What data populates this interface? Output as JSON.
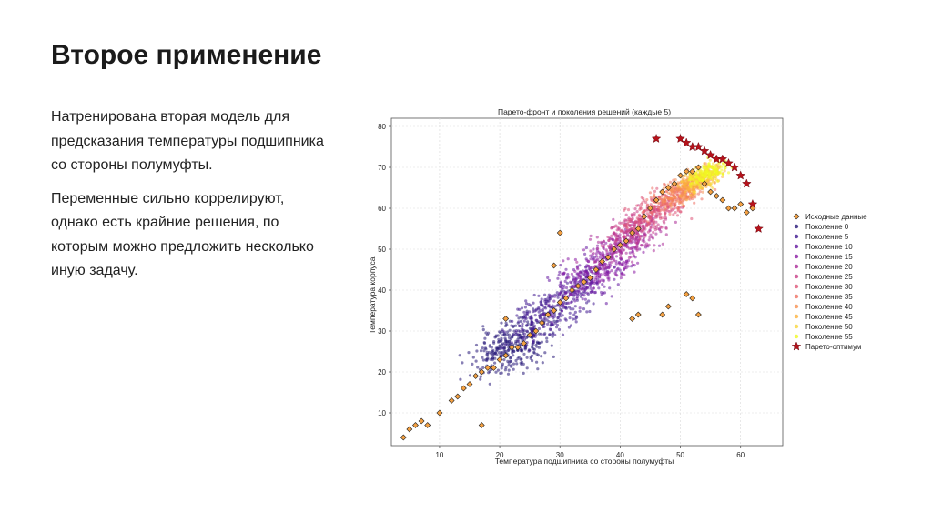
{
  "slide": {
    "title": "Второе применение",
    "paragraphs": [
      "Натренирована вторая модель для предсказания температуры подшипника со стороны полумуфты.",
      "Переменные сильно коррелируют, однако есть крайние решения, по которым можно предложить несколько иную задачу."
    ]
  },
  "chart_data": {
    "type": "scatter",
    "title": "Парето-фронт и поколения решений (каждые 5)",
    "xlabel": "Температура подшипника со стороны полумуфты",
    "ylabel": "Температура корпуса",
    "xlim": [
      2,
      67
    ],
    "ylim": [
      2,
      82
    ],
    "xticks": [
      10,
      20,
      30,
      40,
      50,
      60
    ],
    "yticks": [
      10,
      20,
      30,
      40,
      50,
      60,
      70,
      80
    ],
    "grid": true,
    "legend_position": "right",
    "series": [
      {
        "name": "Исходные данные",
        "color": "#f5a142",
        "marker": "diamond",
        "x": [
          4,
          5,
          6,
          7,
          8,
          12,
          13,
          14,
          15,
          16,
          17,
          18,
          19,
          20,
          21,
          22,
          23,
          24,
          25,
          26,
          27,
          28,
          29,
          30,
          31,
          32,
          33,
          34,
          35,
          36,
          37,
          38,
          39,
          40,
          41,
          42,
          43,
          44,
          45,
          46,
          47,
          48,
          49,
          50,
          51,
          52,
          53,
          54,
          55,
          56,
          57,
          58,
          59,
          60,
          61,
          62,
          42,
          43,
          47,
          48,
          51,
          52,
          53,
          30,
          29,
          21,
          17,
          10
        ],
        "y": [
          4,
          6,
          7,
          8,
          7,
          13,
          14,
          16,
          17,
          19,
          20,
          21,
          21,
          23,
          24,
          26,
          26,
          27,
          29,
          30,
          32,
          34,
          35,
          37,
          38,
          40,
          41,
          42,
          43,
          45,
          47,
          48,
          50,
          51,
          52,
          54,
          55,
          58,
          60,
          62,
          64,
          65,
          66,
          68,
          69,
          69,
          70,
          66,
          64,
          63,
          62,
          60,
          60,
          61,
          59,
          60,
          33,
          34,
          34,
          36,
          39,
          38,
          34,
          54,
          46,
          33,
          7,
          10
        ]
      },
      {
        "name": "Поколение 0",
        "color": "#271778",
        "marker": "circle"
      },
      {
        "name": "Поколение 5",
        "color": "#3f1890",
        "marker": "circle"
      },
      {
        "name": "Поколение 10",
        "color": "#6418a0",
        "marker": "circle"
      },
      {
        "name": "Поколение 15",
        "color": "#8a1ca4",
        "marker": "circle"
      },
      {
        "name": "Поколение 20",
        "color": "#ab2c98",
        "marker": "circle"
      },
      {
        "name": "Поколение 25",
        "color": "#c83e87",
        "marker": "circle"
      },
      {
        "name": "Поколение 30",
        "color": "#de5678",
        "marker": "circle"
      },
      {
        "name": "Поколение 35",
        "color": "#ef7063",
        "marker": "circle"
      },
      {
        "name": "Поколение 40",
        "color": "#f89050",
        "marker": "circle"
      },
      {
        "name": "Поколение 45",
        "color": "#fcb23c",
        "marker": "circle"
      },
      {
        "name": "Поколение 50",
        "color": "#f9d63a",
        "marker": "circle"
      },
      {
        "name": "Поколение 55",
        "color": "#f0f921",
        "marker": "circle"
      },
      {
        "name": "Парето-оптимум",
        "color": "#b5121b",
        "marker": "star",
        "x": [
          46,
          50,
          51,
          52,
          53,
          54,
          55,
          56,
          57,
          58,
          59,
          60,
          61,
          62,
          63
        ],
        "y": [
          77,
          77,
          76,
          75,
          75,
          74,
          73,
          72,
          72,
          71,
          70,
          68,
          66,
          61,
          55
        ]
      }
    ]
  }
}
